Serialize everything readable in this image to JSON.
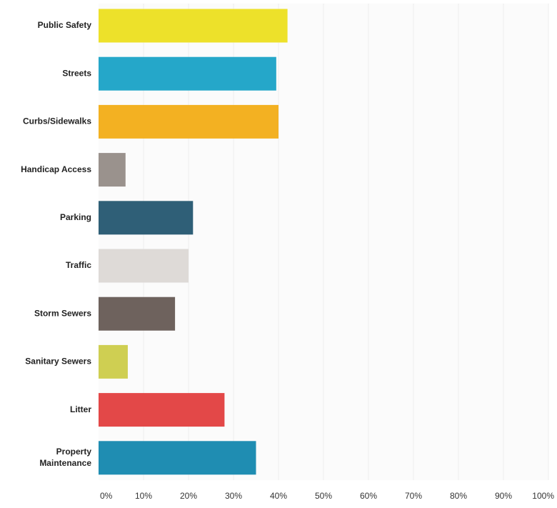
{
  "chart_data": {
    "type": "bar",
    "orientation": "horizontal",
    "categories": [
      "Public Safety",
      "Streets",
      "Curbs/Sidewalks",
      "Handicap Access",
      "Parking",
      "Traffic",
      "Storm Sewers",
      "Sanitary Sewers",
      "Litter",
      "Property Maintenance"
    ],
    "category_lines": [
      [
        "Public Safety"
      ],
      [
        "Streets"
      ],
      [
        "Curbs/Sidewalks"
      ],
      [
        "Handicap Access"
      ],
      [
        "Parking"
      ],
      [
        "Traffic"
      ],
      [
        "Storm Sewers"
      ],
      [
        "Sanitary Sewers"
      ],
      [
        "Litter"
      ],
      [
        "Property",
        "Maintenance"
      ]
    ],
    "values": [
      42,
      39.5,
      40,
      6,
      21,
      20,
      17,
      6.5,
      28,
      35
    ],
    "colors": [
      "#ede12a",
      "#25a7c9",
      "#f3b122",
      "#9a928d",
      "#2f5f77",
      "#dedad7",
      "#6e625d",
      "#cfcf52",
      "#e34848",
      "#1f8db2"
    ],
    "xlim": [
      0,
      100
    ],
    "x_ticks": [
      "0%",
      "10%",
      "20%",
      "30%",
      "40%",
      "50%",
      "60%",
      "70%",
      "80%",
      "90%",
      "100%"
    ],
    "grid": true,
    "legend": "none",
    "title": "",
    "xlabel": "",
    "ylabel": ""
  }
}
